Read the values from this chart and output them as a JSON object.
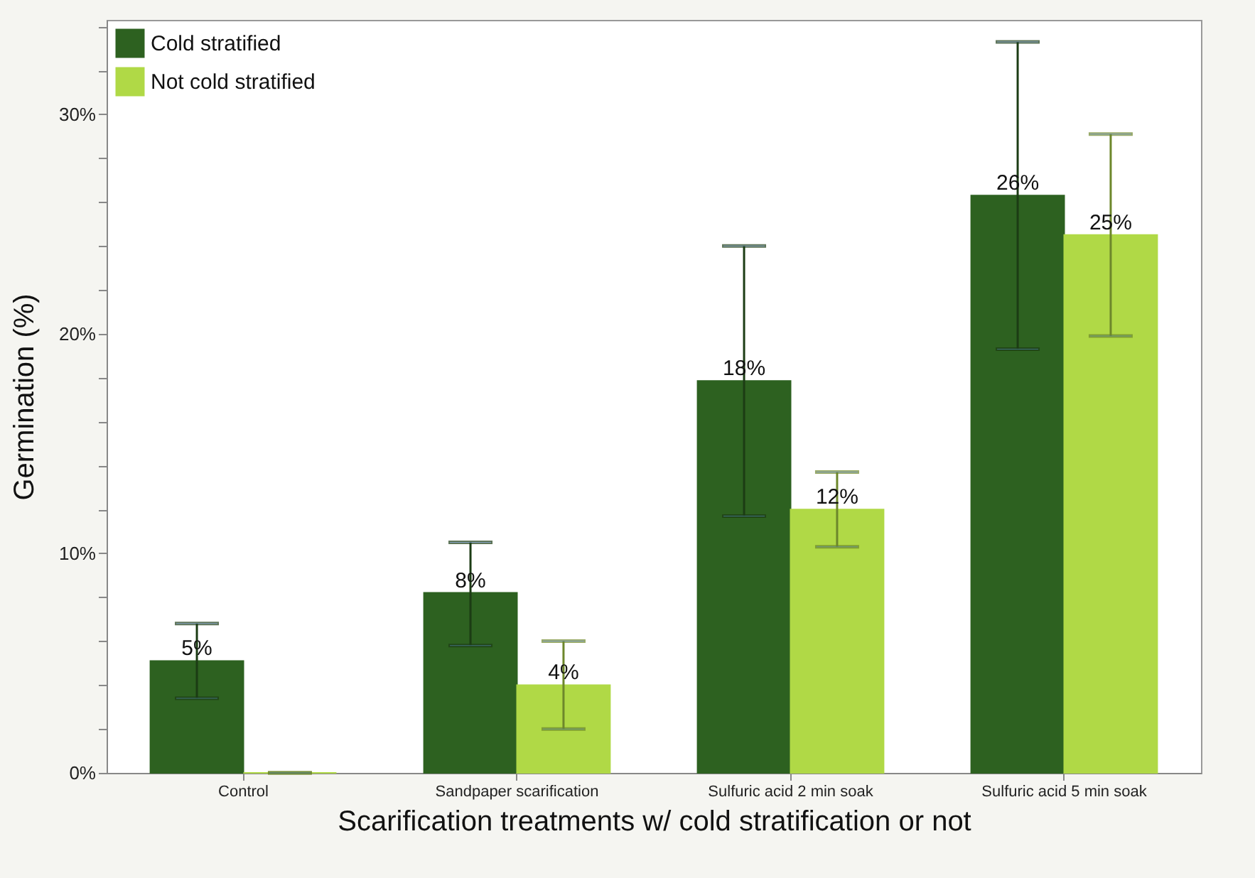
{
  "chart_data": {
    "type": "bar",
    "xlabel": "Scarification treatments w/ cold stratification or not",
    "ylabel": "Germination (%)",
    "categories": [
      "Control",
      "Sandpaper scarification",
      "Sulfuric acid 2 min soak",
      "Sulfuric acid 5 min soak"
    ],
    "series": [
      {
        "name": "Cold stratified",
        "color": "#2d6120",
        "values": [
          5.1,
          8.2,
          17.85,
          26.3
        ],
        "errors": [
          [
            3.4,
            6.8
          ],
          [
            5.8,
            10.5
          ],
          [
            11.7,
            24.0
          ],
          [
            19.3,
            33.3
          ]
        ],
        "value_labels": [
          "5%",
          "8%",
          "18%",
          "26%"
        ]
      },
      {
        "name": "Not cold stratified",
        "color": "#b0d946",
        "values": [
          0,
          4.0,
          12.0,
          24.5
        ],
        "errors": [
          [
            0,
            0
          ],
          [
            2.0,
            6.0
          ],
          [
            10.3,
            13.7
          ],
          [
            19.9,
            29.1
          ]
        ],
        "value_labels": [
          null,
          "4%",
          "12%",
          "25%"
        ]
      }
    ],
    "ylim": [
      0,
      34.3
    ],
    "yticks": [
      {
        "value": 0,
        "label": "0%"
      },
      {
        "value": 2,
        "label": null
      },
      {
        "value": 4,
        "label": null
      },
      {
        "value": 6,
        "label": null
      },
      {
        "value": 8,
        "label": null
      },
      {
        "value": 10,
        "label": "10%"
      },
      {
        "value": 12,
        "label": null
      },
      {
        "value": 14,
        "label": null
      },
      {
        "value": 16,
        "label": null
      },
      {
        "value": 18,
        "label": null
      },
      {
        "value": 20,
        "label": "20%"
      },
      {
        "value": 22,
        "label": null
      },
      {
        "value": 24,
        "label": null
      },
      {
        "value": 26,
        "label": null
      },
      {
        "value": 28,
        "label": null
      },
      {
        "value": 30,
        "label": "30%"
      },
      {
        "value": 32,
        "label": null
      },
      {
        "value": 34,
        "label": null
      }
    ],
    "grid": false,
    "legend": "top left"
  }
}
